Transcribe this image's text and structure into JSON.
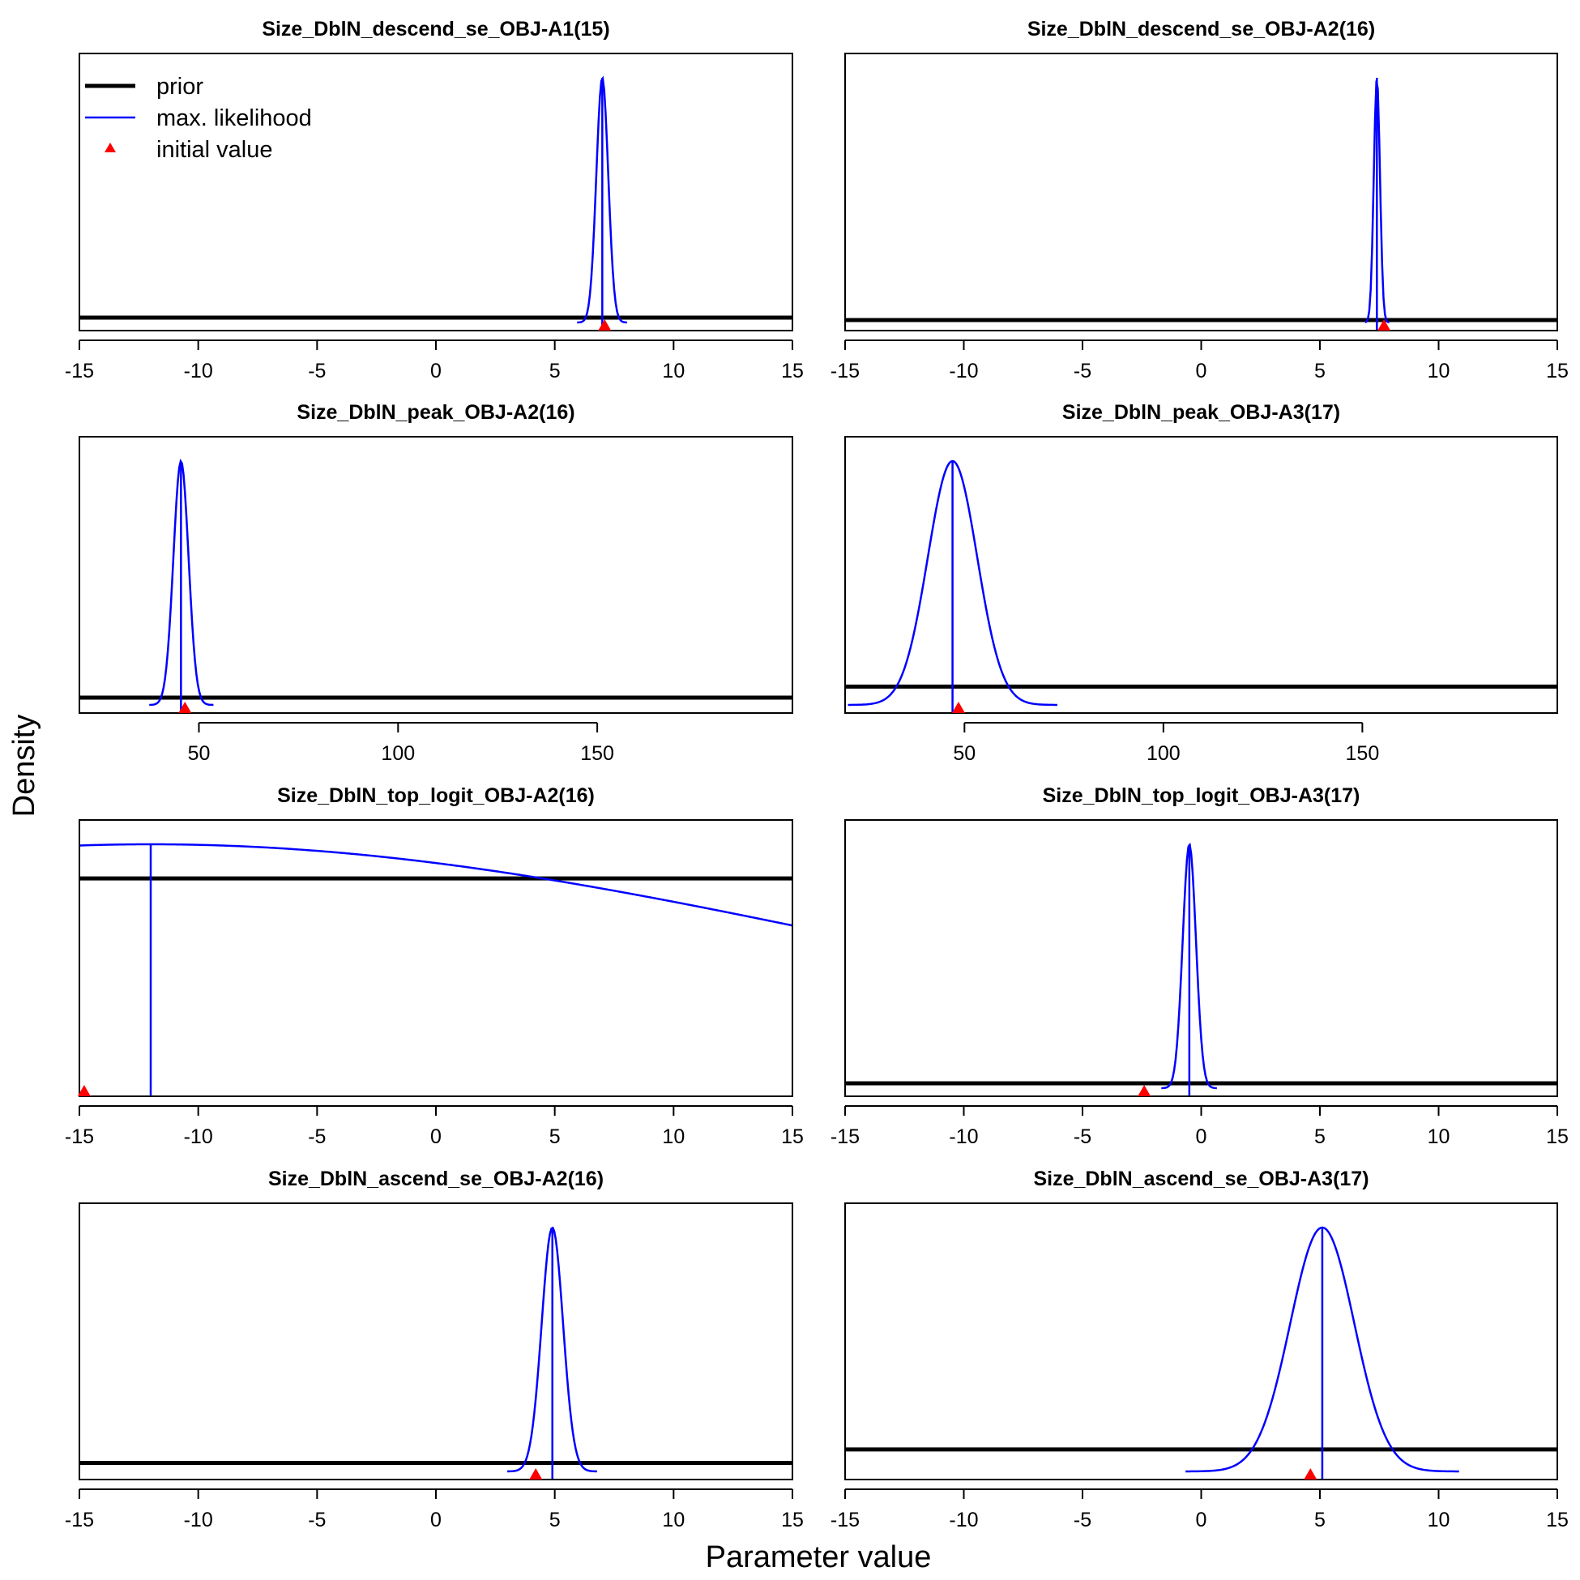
{
  "figure": {
    "ylabel": "Density",
    "xlabel": "Parameter value",
    "legend": {
      "placement": "top-left of first panel",
      "items": [
        {
          "label": "prior",
          "style": "thick-black-line"
        },
        {
          "label": "max. likelihood",
          "style": "blue-line"
        },
        {
          "label": "initial value",
          "style": "red-triangle"
        }
      ]
    },
    "colors": {
      "prior": "#000000",
      "likelihood": "#0000ff",
      "initial": "#ff0000"
    }
  },
  "chart_data": [
    {
      "type": "line",
      "title": "Size_DblN_descend_se_OBJ-A1(15)",
      "xlim": [
        -15,
        15
      ],
      "xticks": [
        -15,
        -10,
        -5,
        0,
        5,
        10,
        15
      ],
      "tick_labels": [
        "-15",
        "-10",
        "-5",
        "0",
        "5",
        "10",
        "15"
      ],
      "prior_level": 0.02,
      "likelihood": {
        "shape": "normal",
        "mean": 7.0,
        "sd": 0.25,
        "estimate": 7.0
      },
      "initial_value": 7.1
    },
    {
      "type": "line",
      "title": "Size_DblN_descend_se_OBJ-A2(16)",
      "xlim": [
        -15,
        15
      ],
      "xticks": [
        -15,
        -10,
        -5,
        0,
        5,
        10,
        15
      ],
      "tick_labels": [
        "-15",
        "-10",
        "-5",
        "0",
        "5",
        "10",
        "15"
      ],
      "prior_level": 0.01,
      "likelihood": {
        "shape": "normal",
        "mean": 7.4,
        "sd": 0.13,
        "estimate": 7.4
      },
      "initial_value": 7.7
    },
    {
      "type": "line",
      "title": "Size_DblN_peak_OBJ-A2(16)",
      "xlim": [
        20,
        199
      ],
      "xticks": [
        50,
        100,
        150
      ],
      "tick_labels": [
        "50",
        "100",
        "150"
      ],
      "prior_level": 0.03,
      "likelihood": {
        "shape": "normal",
        "mean": 45.5,
        "sd": 1.9,
        "estimate": 45.5
      },
      "initial_value": 46.5
    },
    {
      "type": "line",
      "title": "Size_DblN_peak_OBJ-A3(17)",
      "xlim": [
        20,
        199
      ],
      "xticks": [
        50,
        100,
        150
      ],
      "tick_labels": [
        "50",
        "100",
        "150"
      ],
      "prior_level": 0.075,
      "likelihood": {
        "shape": "normal",
        "mean": 47.0,
        "sd": 6.2,
        "estimate": 47.0
      },
      "initial_value": 48.5
    },
    {
      "type": "line",
      "title": "Size_DblN_top_logit_OBJ-A2(16)",
      "xlim": [
        -15,
        15
      ],
      "xticks": [
        -15,
        -10,
        -5,
        0,
        5,
        10,
        15
      ],
      "tick_labels": [
        "-15",
        "-10",
        "-5",
        "0",
        "5",
        "10",
        "15"
      ],
      "prior_level": 0.86,
      "likelihood": {
        "shape": "normal",
        "mean": -12,
        "sd": 30,
        "estimate": -12
      },
      "initial_value": -14.8
    },
    {
      "type": "line",
      "title": "Size_DblN_top_logit_OBJ-A3(17)",
      "xlim": [
        -15,
        15
      ],
      "xticks": [
        -15,
        -10,
        -5,
        0,
        5,
        10,
        15
      ],
      "tick_labels": [
        "-15",
        "-10",
        "-5",
        "0",
        "5",
        "10",
        "15"
      ],
      "prior_level": 0.02,
      "likelihood": {
        "shape": "normal",
        "mean": -0.5,
        "sd": 0.28,
        "estimate": -0.5
      },
      "initial_value": -2.4
    },
    {
      "type": "line",
      "title": "Size_DblN_ascend_se_OBJ-A2(16)",
      "xlim": [
        -15,
        15
      ],
      "xticks": [
        -15,
        -10,
        -5,
        0,
        5,
        10,
        15
      ],
      "tick_labels": [
        "-15",
        "-10",
        "-5",
        "0",
        "5",
        "10",
        "15"
      ],
      "prior_level": 0.035,
      "likelihood": {
        "shape": "normal",
        "mean": 4.9,
        "sd": 0.45,
        "estimate": 4.9
      },
      "initial_value": 4.2
    },
    {
      "type": "line",
      "title": "Size_DblN_ascend_se_OBJ-A3(17)",
      "xlim": [
        -15,
        15
      ],
      "xticks": [
        -15,
        -10,
        -5,
        0,
        5,
        10,
        15
      ],
      "tick_labels": [
        "-15",
        "-10",
        "-5",
        "0",
        "5",
        "10",
        "15"
      ],
      "prior_level": 0.09,
      "likelihood": {
        "shape": "normal",
        "mean": 5.1,
        "sd": 1.35,
        "estimate": 5.1
      },
      "initial_value": 4.6
    }
  ]
}
